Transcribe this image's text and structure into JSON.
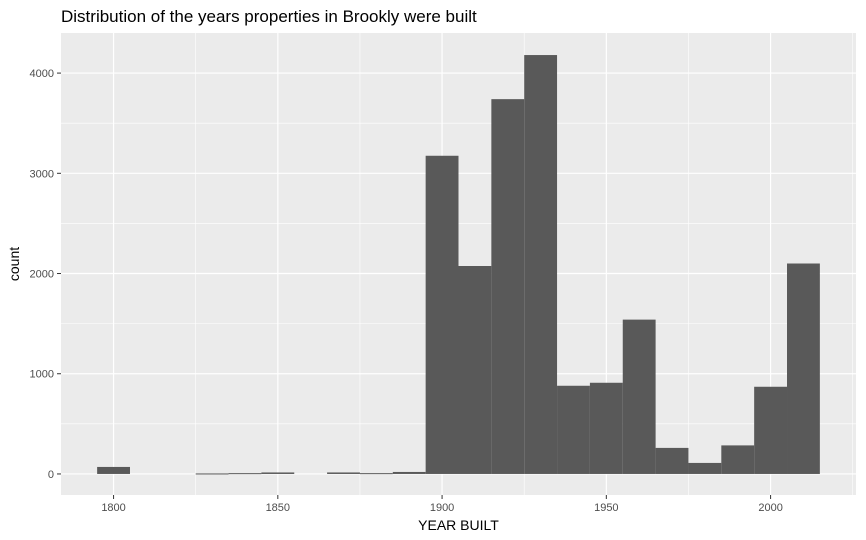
{
  "chart_data": {
    "type": "bar",
    "subtype": "histogram",
    "title": "Distribution of the years properties in Brookly were built",
    "xlabel": "YEAR BUILT",
    "ylabel": "count",
    "bin_width": 10,
    "bins": [
      {
        "start": 1795,
        "end": 1805,
        "count": 70
      },
      {
        "start": 1805,
        "end": 1815,
        "count": 0
      },
      {
        "start": 1815,
        "end": 1825,
        "count": 0
      },
      {
        "start": 1825,
        "end": 1835,
        "count": 5
      },
      {
        "start": 1835,
        "end": 1845,
        "count": 8
      },
      {
        "start": 1845,
        "end": 1855,
        "count": 15
      },
      {
        "start": 1855,
        "end": 1865,
        "count": 0
      },
      {
        "start": 1865,
        "end": 1875,
        "count": 15
      },
      {
        "start": 1875,
        "end": 1885,
        "count": 8
      },
      {
        "start": 1885,
        "end": 1895,
        "count": 20
      },
      {
        "start": 1895,
        "end": 1905,
        "count": 3175
      },
      {
        "start": 1905,
        "end": 1915,
        "count": 2075
      },
      {
        "start": 1915,
        "end": 1925,
        "count": 3740
      },
      {
        "start": 1925,
        "end": 1935,
        "count": 4180
      },
      {
        "start": 1935,
        "end": 1945,
        "count": 880
      },
      {
        "start": 1945,
        "end": 1955,
        "count": 910
      },
      {
        "start": 1955,
        "end": 1965,
        "count": 1540
      },
      {
        "start": 1965,
        "end": 1975,
        "count": 260
      },
      {
        "start": 1975,
        "end": 1985,
        "count": 110
      },
      {
        "start": 1985,
        "end": 1995,
        "count": 285
      },
      {
        "start": 1995,
        "end": 2005,
        "count": 870
      },
      {
        "start": 2005,
        "end": 2015,
        "count": 2100
      }
    ],
    "xlim": [
      1784,
      2026
    ],
    "ylim": [
      -210,
      4400
    ],
    "x_ticks": [
      1800,
      1850,
      1900,
      1950,
      2000
    ],
    "x_tick_labels": [
      "1800",
      "1850",
      "1900",
      "1950",
      "2000"
    ],
    "y_ticks": [
      0,
      1000,
      2000,
      3000,
      4000
    ],
    "y_tick_labels": [
      "0",
      "1000",
      "2000",
      "3000",
      "4000"
    ],
    "grid": true,
    "colors": {
      "panel_background": "#ebebeb",
      "grid_major": "#ffffff",
      "bar_fill": "#595959",
      "tick_text": "#4d4d4d",
      "tick_mark": "#333333"
    }
  }
}
